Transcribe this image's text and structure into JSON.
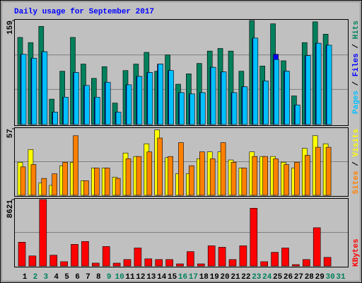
{
  "title": "Daily usage for September 2017",
  "legend_separator": " / ",
  "chart_data": [
    {
      "type": "bar",
      "ylim": [
        0,
        159
      ],
      "yticks": [
        159
      ],
      "series": [
        {
          "name": "Hits",
          "color": "#00805c",
          "values": [
            133,
            125,
            150,
            38,
            81,
            133,
            92,
            70,
            88,
            32,
            82,
            92,
            110,
            81,
            106,
            61,
            77,
            93,
            112,
            116,
            112,
            81,
            159,
            89,
            154,
            97,
            43,
            125,
            157,
            138,
            0
          ]
        },
        {
          "name": "Files",
          "color": "#0000ff",
          "values": [
            107,
            101,
            111,
            18,
            41,
            79,
            59,
            41,
            64,
            18,
            60,
            73,
            79,
            92,
            82,
            48,
            46,
            48,
            87,
            80,
            48,
            57,
            132,
            66,
            107,
            81,
            29,
            105,
            124,
            121,
            0
          ]
        },
        {
          "name": "Pages",
          "color": "#00c0ff",
          "values": [
            107,
            101,
            111,
            18,
            41,
            79,
            59,
            41,
            64,
            18,
            60,
            73,
            79,
            92,
            82,
            48,
            46,
            48,
            87,
            80,
            48,
            57,
            132,
            66,
            99,
            81,
            29,
            105,
            124,
            121,
            0
          ]
        }
      ]
    },
    {
      "type": "bar",
      "ylim": [
        0,
        57
      ],
      "yticks": [
        57
      ],
      "series": [
        {
          "name": "Visits",
          "color": "#ffff00",
          "values": [
            28,
            39,
            10,
            8,
            25,
            28,
            12,
            23,
            23,
            15,
            36,
            33,
            44,
            56,
            32,
            18,
            18,
            31,
            37,
            37,
            30,
            23,
            37,
            33,
            33,
            28,
            23,
            40,
            51,
            44,
            0
          ]
        },
        {
          "name": "Sites",
          "color": "#ff8000",
          "values": [
            24,
            26,
            14,
            18,
            28,
            51,
            12,
            23,
            23,
            14,
            31,
            33,
            37,
            49,
            33,
            45,
            25,
            37,
            31,
            45,
            28,
            23,
            33,
            33,
            31,
            26,
            28,
            34,
            41,
            41,
            0
          ]
        }
      ]
    },
    {
      "type": "bar",
      "ylim": [
        0,
        8621
      ],
      "yticks": [
        8621
      ],
      "categories": [
        "1",
        "2",
        "3",
        "4",
        "5",
        "6",
        "7",
        "8",
        "9",
        "10",
        "11",
        "12",
        "13",
        "14",
        "15",
        "16",
        "17",
        "18",
        "19",
        "20",
        "21",
        "22",
        "23",
        "24",
        "25",
        "26",
        "27",
        "28",
        "29",
        "30",
        "31"
      ],
      "category_colors": [
        "#000000",
        "#00805c",
        "#00805c",
        "#000000",
        "#000000",
        "#000000",
        "#000000",
        "#000000",
        "#00805c",
        "#00805c",
        "#000000",
        "#000000",
        "#000000",
        "#000000",
        "#000000",
        "#00805c",
        "#00805c",
        "#000000",
        "#000000",
        "#000000",
        "#000000",
        "#000000",
        "#00805c",
        "#00805c",
        "#000000",
        "#000000",
        "#000000",
        "#000000",
        "#000000",
        "#00805c",
        "#00805c"
      ],
      "series": [
        {
          "name": "KBytes",
          "color": "#ff0000",
          "values": [
            3030,
            1231,
            8621,
            1326,
            474,
            2747,
            3126,
            284,
            2463,
            284,
            758,
            2273,
            852,
            758,
            758,
            189,
            1800,
            189,
            2558,
            2368,
            758,
            2558,
            7481,
            474,
            1705,
            2273,
            95,
            758,
            4925,
            1042,
            0
          ]
        }
      ]
    }
  ]
}
